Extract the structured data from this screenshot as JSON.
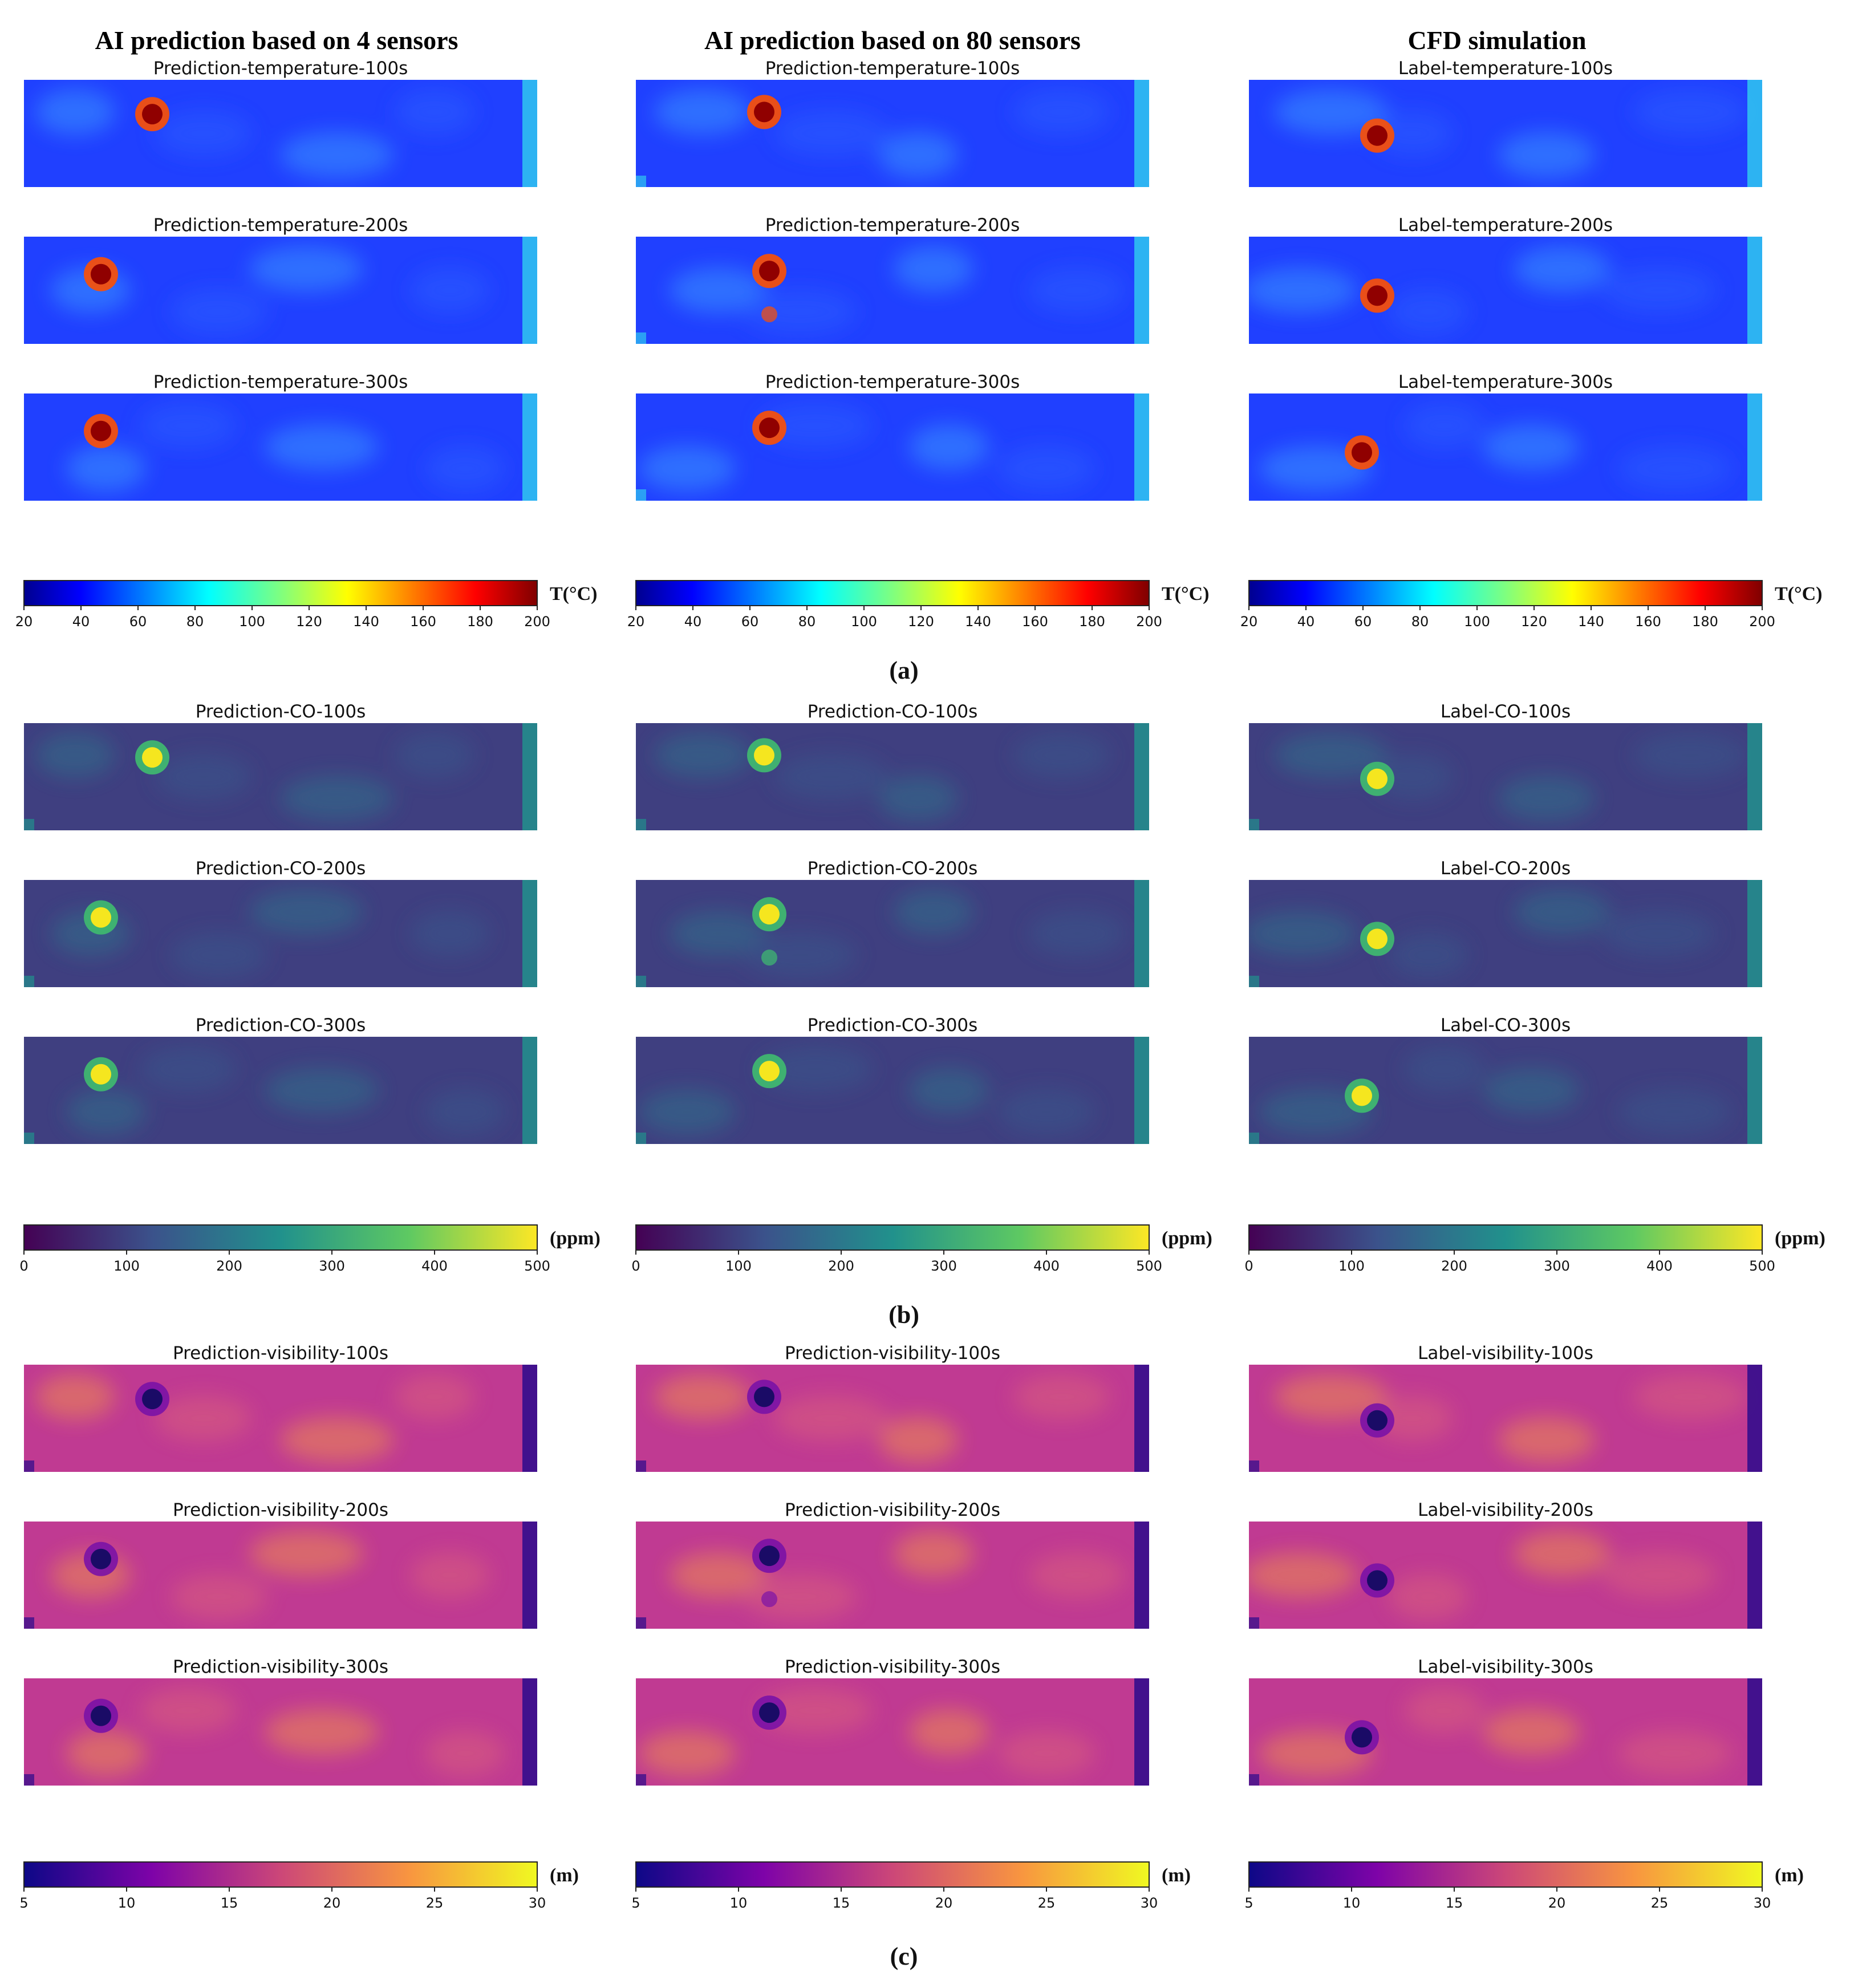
{
  "figure": {
    "columns": [
      "AI prediction based on 4 sensors",
      "AI prediction based on 80 sensors",
      "CFD simulation"
    ],
    "section_labels": [
      "(a)",
      "(b)",
      "(c)"
    ]
  },
  "chart_data": [
    {
      "type": "heatmap",
      "section": "(a)",
      "quantity": "temperature",
      "colormap": "jet",
      "colorbar": {
        "range": [
          20,
          200
        ],
        "ticks": [
          20,
          40,
          60,
          80,
          100,
          120,
          140,
          160,
          180,
          200
        ],
        "unit": "T(°C)"
      },
      "panels": [
        [
          "Prediction-temperature-100s",
          "Prediction-temperature-200s",
          "Prediction-temperature-300s"
        ],
        [
          "Prediction-temperature-100s",
          "Prediction-temperature-200s",
          "Prediction-temperature-300s"
        ],
        [
          "Label-temperature-100s",
          "Label-temperature-200s",
          "Label-temperature-300s"
        ]
      ]
    },
    {
      "type": "heatmap",
      "section": "(b)",
      "quantity": "CO",
      "colormap": "viridis",
      "colorbar": {
        "range": [
          0,
          500
        ],
        "ticks": [
          0,
          100,
          200,
          300,
          400,
          500
        ],
        "unit": "(ppm)"
      },
      "panels": [
        [
          "Prediction-CO-100s",
          "Prediction-CO-200s",
          "Prediction-CO-300s"
        ],
        [
          "Prediction-CO-100s",
          "Prediction-CO-200s",
          "Prediction-CO-300s"
        ],
        [
          "Label-CO-100s",
          "Label-CO-200s",
          "Label-CO-300s"
        ]
      ]
    },
    {
      "type": "heatmap",
      "section": "(c)",
      "quantity": "visibility",
      "colormap": "plasma",
      "colorbar": {
        "range": [
          5,
          30
        ],
        "ticks": [
          5,
          10,
          15,
          20,
          25,
          30
        ],
        "unit": "(m)"
      },
      "panels": [
        [
          "Prediction-visibility-100s",
          "Prediction-visibility-200s",
          "Prediction-visibility-300s"
        ],
        [
          "Prediction-visibility-100s",
          "Prediction-visibility-200s",
          "Prediction-visibility-300s"
        ],
        [
          "Label-visibility-100s",
          "Label-visibility-200s",
          "Label-visibility-300s"
        ]
      ]
    }
  ]
}
